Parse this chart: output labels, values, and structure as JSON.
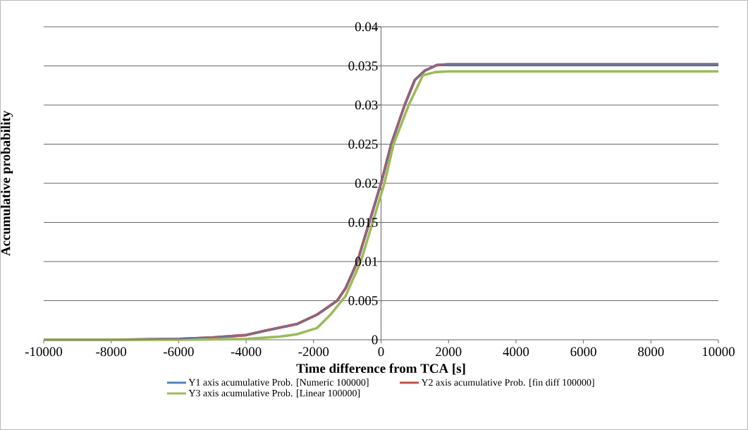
{
  "chart_data": {
    "type": "line",
    "xlabel": "Time difference from TCA [s]",
    "ylabel": "Accumulative probability",
    "xlim": [
      -10000,
      10000
    ],
    "xticks": [
      -10000,
      -8000,
      -6000,
      -4000,
      -2000,
      0,
      2000,
      4000,
      6000,
      8000,
      10000
    ],
    "ylim": [
      0,
      0.04
    ],
    "yticks": [
      0,
      0.005,
      0.01,
      0.015,
      0.02,
      0.025,
      0.03,
      0.035,
      0.04
    ],
    "grid": "y",
    "legend": "bottom",
    "marker": "none",
    "line_style": "solid",
    "series": [
      {
        "name": "Y1 axis acumulative Prob. [Numeric 100000]",
        "color": "#4f81bd",
        "x": [
          -10000,
          -8000,
          -6000,
          -5000,
          -4000,
          -3400,
          -2500,
          -1900,
          -1500,
          -1300,
          -1050,
          -700,
          -350,
          0,
          300,
          700,
          1000,
          1300,
          1650,
          2000,
          4000,
          10000
        ],
        "values": [
          0,
          0,
          0.0001,
          0.0003,
          0.0006,
          0.0012,
          0.002,
          0.0032,
          0.0044,
          0.005,
          0.0066,
          0.01,
          0.015,
          0.02,
          0.025,
          0.03,
          0.0332,
          0.0344,
          0.0351,
          0.0352,
          0.0352,
          0.0352
        ]
      },
      {
        "name": "Y2 axis acumulative Prob. [fin diff 100000]",
        "color": "#c0504d",
        "x": [
          -10000,
          -8000,
          -6000,
          -5000,
          -4000,
          -3400,
          -2500,
          -1900,
          -1500,
          -1300,
          -1050,
          -700,
          -350,
          0,
          300,
          700,
          1000,
          1300,
          1650,
          2000,
          4000,
          10000
        ],
        "values": [
          0,
          0,
          0.0001,
          0.0003,
          0.0006,
          0.0012,
          0.002,
          0.0032,
          0.0044,
          0.005,
          0.0066,
          0.01,
          0.015,
          0.02,
          0.025,
          0.03,
          0.0332,
          0.0344,
          0.0351,
          0.0352,
          0.0352,
          0.0352
        ]
      },
      {
        "name": "Y3 axis acumulative Prob. [Linear 100000]",
        "color": "#9bbb59",
        "x": [
          -10000,
          -6000,
          -4000,
          -3000,
          -2500,
          -1900,
          -1500,
          -1050,
          -600,
          -250,
          100,
          370,
          820,
          1240,
          1600,
          2000,
          10000
        ],
        "values": [
          0,
          0,
          0.0001,
          0.0004,
          0.0007,
          0.0015,
          0.0032,
          0.0056,
          0.01,
          0.015,
          0.02,
          0.025,
          0.03,
          0.0338,
          0.0342,
          0.0343,
          0.0343
        ]
      }
    ]
  }
}
